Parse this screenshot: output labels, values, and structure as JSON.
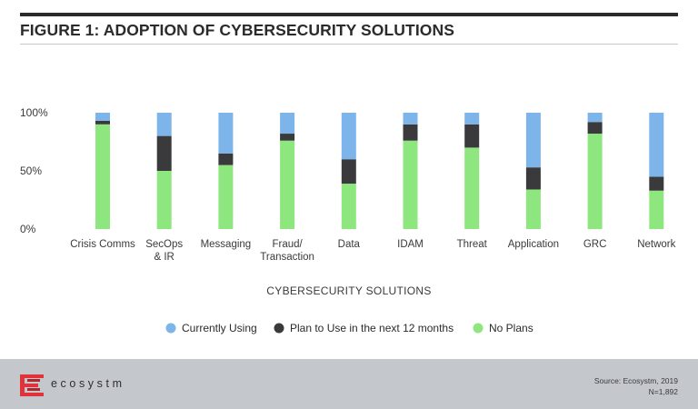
{
  "header": {
    "title": "FIGURE 1: ADOPTION OF CYBERSECURITY SOLUTIONS"
  },
  "chart_data": {
    "type": "bar",
    "stacked": true,
    "title": "FIGURE 1: ADOPTION OF CYBERSECURITY SOLUTIONS",
    "xlabel": "CYBERSECURITY SOLUTIONS",
    "ylabel": "",
    "ylim": [
      0,
      100
    ],
    "yticks": [
      0,
      50,
      100
    ],
    "ytick_labels": [
      "0%",
      "50%",
      "100%"
    ],
    "legend_position": "bottom",
    "categories": [
      [
        "Crisis Comms"
      ],
      [
        "SecOps",
        "& IR"
      ],
      [
        "Messaging"
      ],
      [
        "Fraud/",
        "Transaction"
      ],
      [
        "Data"
      ],
      [
        "IDAM"
      ],
      [
        "Threat"
      ],
      [
        "Application"
      ],
      [
        "GRC"
      ],
      [
        "Network"
      ]
    ],
    "series": [
      {
        "name": "No Plans",
        "color": "#8ee67e",
        "values": [
          90,
          50,
          55,
          76,
          39,
          76,
          70,
          34,
          82,
          33
        ]
      },
      {
        "name": "Plan to Use in the next 12 months",
        "color": "#3a3a3d",
        "values": [
          3,
          30,
          10,
          6,
          21,
          14,
          20,
          19,
          10,
          12
        ]
      },
      {
        "name": "Currently Using",
        "color": "#7db4ea",
        "values": [
          7,
          20,
          35,
          18,
          40,
          10,
          10,
          47,
          8,
          55
        ]
      }
    ],
    "legend_order": [
      "Currently Using",
      "Plan to Use in the next 12 months",
      "No Plans"
    ]
  },
  "footer": {
    "brand": "ecosystm",
    "source_line1": "Source: Ecosystm, 2019",
    "source_line2": "N=1,892",
    "brand_color": "#e0343a"
  }
}
